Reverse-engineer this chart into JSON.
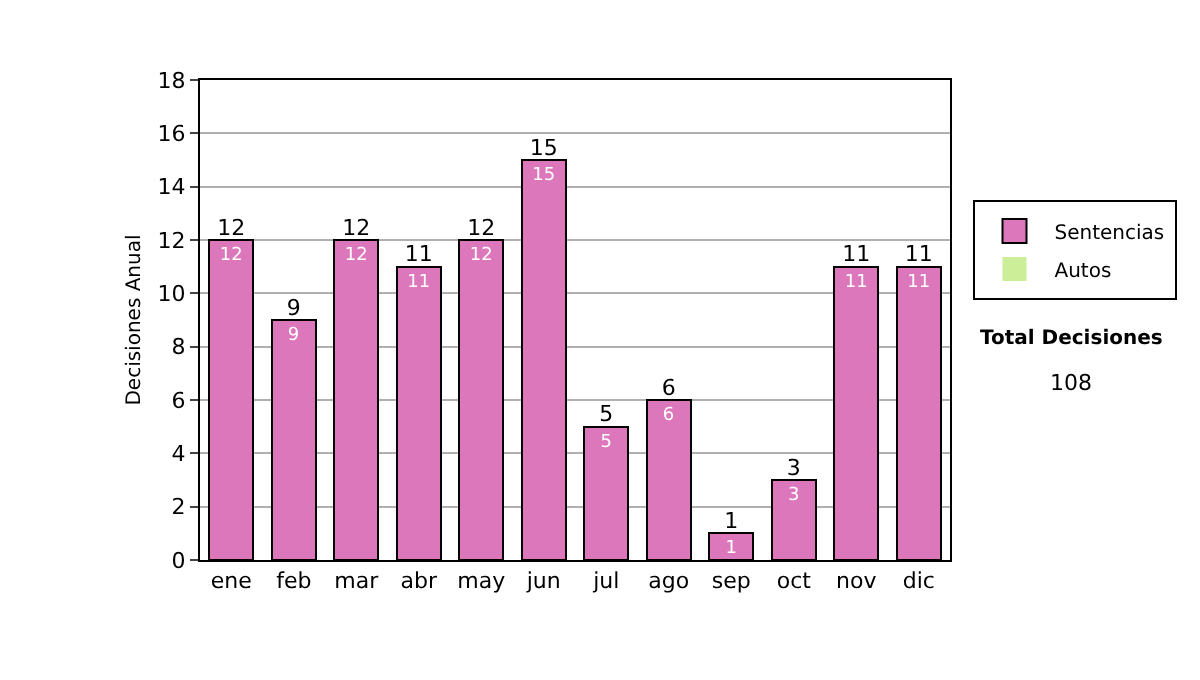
{
  "chart_data": {
    "type": "bar",
    "stacked": true,
    "ylabel": "Decisiones Anual",
    "categories": [
      "ene",
      "feb",
      "mar",
      "abr",
      "may",
      "jun",
      "jul",
      "ago",
      "sep",
      "oct",
      "nov",
      "dic"
    ],
    "series": [
      {
        "name": "Sentencias",
        "color": "#dd77bb",
        "values": [
          12,
          9,
          12,
          11,
          12,
          15,
          5,
          6,
          1,
          3,
          11,
          11
        ],
        "value_labels": [
          "12",
          "9",
          "12",
          "11",
          "12",
          "15",
          "5",
          "6",
          "1",
          "3",
          "11",
          "11"
        ]
      },
      {
        "name": "Autos",
        "color": "#ccee99",
        "values": [
          0,
          0,
          0,
          0,
          0,
          0,
          0,
          0,
          0,
          0,
          0,
          0
        ]
      }
    ],
    "totals": [
      "12",
      "9",
      "12",
      "11",
      "12",
      "15",
      "5",
      "6",
      "1",
      "3",
      "11",
      "11"
    ],
    "ylim": [
      0,
      18
    ],
    "yticks": [
      0,
      2,
      4,
      6,
      8,
      10,
      12,
      14,
      16,
      18
    ],
    "grid": "y",
    "legend": "right",
    "annotations": [
      "Total Decisiones",
      "108"
    ]
  }
}
